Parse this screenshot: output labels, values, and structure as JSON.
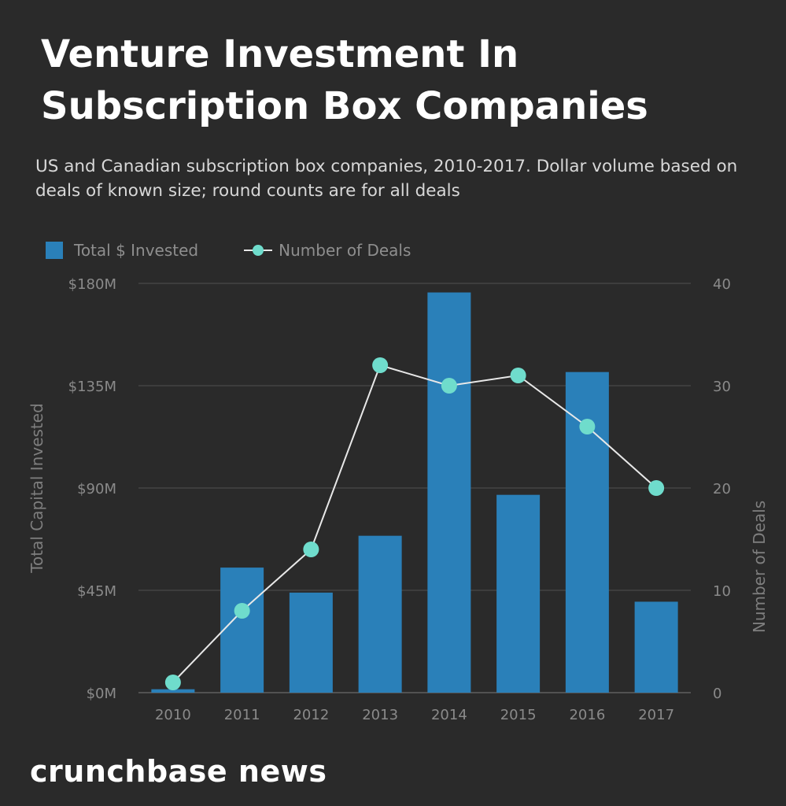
{
  "chart_data": {
    "type": "bar",
    "title": "Venture Investment In Subscription Box Companies",
    "subtitle": "US and Canadian subscription box companies, 2010-2017. Dollar volume based on deals of known size; round counts are for all deals",
    "categories": [
      "2010",
      "2011",
      "2012",
      "2013",
      "2014",
      "2015",
      "2016",
      "2017"
    ],
    "series": [
      {
        "name": "Total $ Invested",
        "type": "bar",
        "axis": "left",
        "unit": "$M",
        "values": [
          1.5,
          55,
          44,
          69,
          176,
          87,
          141,
          40
        ],
        "color": "#2a80b9"
      },
      {
        "name": "Number of Deals",
        "type": "line",
        "axis": "right",
        "values": [
          1,
          8,
          14,
          32,
          30,
          31,
          26,
          20
        ],
        "color": "#6fdccc",
        "line_color": "#e8e8e8"
      }
    ],
    "ylabel": "Total Capital Invested",
    "y2label": "Number of Deals",
    "ylim": [
      0,
      180
    ],
    "y2lim": [
      0,
      40
    ],
    "y_ticks": [
      "$0M",
      "$45M",
      "$90M",
      "$135M",
      "$180M"
    ],
    "y2_ticks": [
      "0",
      "10",
      "20",
      "30",
      "40"
    ],
    "grid": true,
    "legend_position": "top-left"
  },
  "brand": "crunchbase news"
}
